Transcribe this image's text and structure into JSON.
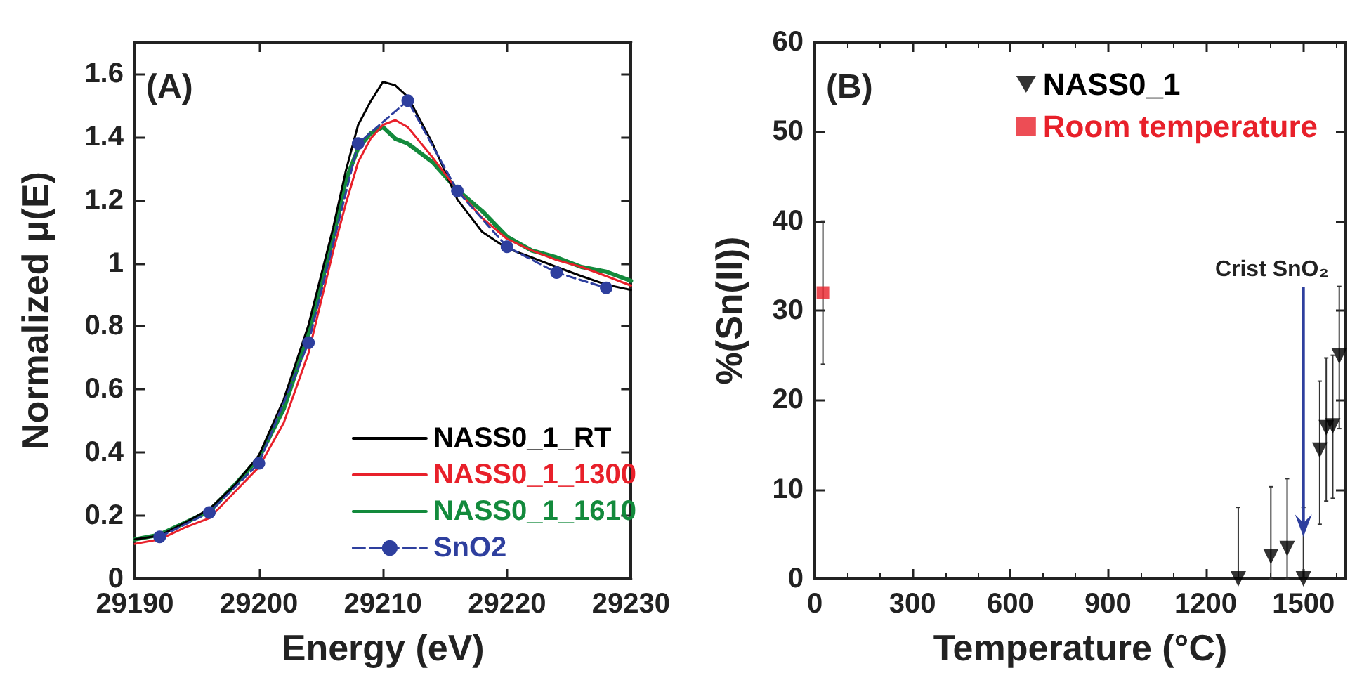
{
  "chart_data": [
    {
      "type": "line",
      "xlabel": "Energy (eV)",
      "ylabel": "Normalized μ(E)",
      "annotations": [
        "(A)"
      ],
      "xlim": [
        29190,
        29230
      ],
      "xticks": [
        29190,
        29200,
        29210,
        29220,
        29230
      ],
      "ylim": [
        0,
        1.7
      ],
      "yticks": [
        0,
        0.2,
        0.4,
        0.6,
        0.8,
        1,
        1.2,
        1.4,
        1.6
      ],
      "legend": "bottom right",
      "series": [
        {
          "name": "NASS0_1_RT",
          "color": "#000000",
          "marker": "none",
          "line_style": "solid",
          "x": [
            29190,
            29192,
            29194,
            29196,
            29198,
            29200,
            29202,
            29204,
            29206,
            29207,
            29208,
            29209,
            29210,
            29211,
            29212,
            29214,
            29216,
            29218,
            29220,
            29222,
            29224,
            29226,
            29228,
            29230
          ],
          "values": [
            0.125,
            0.137,
            0.177,
            0.221,
            0.295,
            0.391,
            0.568,
            0.804,
            1.114,
            1.291,
            1.438,
            1.512,
            1.574,
            1.563,
            1.527,
            1.379,
            1.202,
            1.099,
            1.047,
            1.018,
            0.988,
            0.959,
            0.932,
            0.915
          ]
        },
        {
          "name": "NASS0_1_1300",
          "color": "#e8202a",
          "marker": "none",
          "line_style": "solid",
          "x": [
            29190,
            29192,
            29194,
            29196,
            29198,
            29200,
            29202,
            29204,
            29206,
            29207,
            29208,
            29209,
            29210,
            29211,
            29212,
            29214,
            29216,
            29218,
            29220,
            29222,
            29224,
            29226,
            29228,
            29230
          ],
          "values": [
            0.111,
            0.125,
            0.162,
            0.192,
            0.273,
            0.354,
            0.494,
            0.715,
            1.04,
            1.187,
            1.32,
            1.394,
            1.438,
            1.453,
            1.431,
            1.335,
            1.232,
            1.143,
            1.077,
            1.04,
            1.01,
            0.988,
            0.959,
            0.929
          ]
        },
        {
          "name": "NASS0_1_1610",
          "color": "#138a3c",
          "marker": "none",
          "line_style": "solid",
          "x": [
            29190,
            29192,
            29194,
            29196,
            29198,
            29200,
            29202,
            29204,
            29206,
            29207,
            29208,
            29209,
            29210,
            29211,
            29212,
            29214,
            29216,
            29218,
            29220,
            29222,
            29224,
            29226,
            29228,
            29230
          ],
          "values": [
            0.125,
            0.14,
            0.177,
            0.214,
            0.295,
            0.383,
            0.538,
            0.774,
            1.084,
            1.261,
            1.364,
            1.411,
            1.431,
            1.394,
            1.379,
            1.32,
            1.232,
            1.165,
            1.084,
            1.04,
            1.018,
            0.988,
            0.973,
            0.944
          ]
        },
        {
          "name": "SnO2",
          "color": "#2e3f9e",
          "marker": "circle",
          "line_style": "dashed",
          "x": [
            29192,
            29196,
            29200,
            29204,
            29208,
            29212,
            29216,
            29220,
            29224,
            29228
          ],
          "values": [
            0.133,
            0.21,
            0.366,
            0.748,
            1.379,
            1.515,
            1.229,
            1.052,
            0.97,
            0.922
          ]
        }
      ]
    },
    {
      "type": "scatter",
      "xlabel": "Temperature (°C)",
      "ylabel": "%(Sn(II))",
      "annotations": [
        "(B)",
        {
          "text": "Crist SnO₂",
          "x": 1500,
          "y": 4.7
        }
      ],
      "xlim": [
        0,
        1630
      ],
      "xticks": [
        0,
        300,
        600,
        900,
        1200,
        1500
      ],
      "ylim": [
        0,
        60
      ],
      "yticks": [
        0,
        10,
        20,
        30,
        40,
        50,
        60
      ],
      "legend": "top right",
      "series": [
        {
          "name": "NASS0_1",
          "color": "#000000",
          "marker": "triangle",
          "x": [
            1300,
            1400,
            1450,
            1500,
            1550,
            1570,
            1590,
            1610
          ],
          "values": [
            0,
            2.5,
            3.4,
            0,
            14.4,
            16.9,
            17.1,
            24.9
          ],
          "errors": [
            [
              0,
              8
            ],
            [
              0,
              10.3
            ],
            [
              0,
              11.2
            ],
            [
              0,
              8
            ],
            [
              6.1,
              22.1
            ],
            [
              8.7,
              24.7
            ],
            [
              9,
              25
            ],
            [
              16.8,
              32.7
            ]
          ]
        },
        {
          "name": "Room temperature",
          "color": "#e8202a",
          "marker": "square",
          "x": [
            25
          ],
          "values": [
            32
          ],
          "errors": [
            [
              24,
              40
            ]
          ]
        }
      ]
    }
  ]
}
